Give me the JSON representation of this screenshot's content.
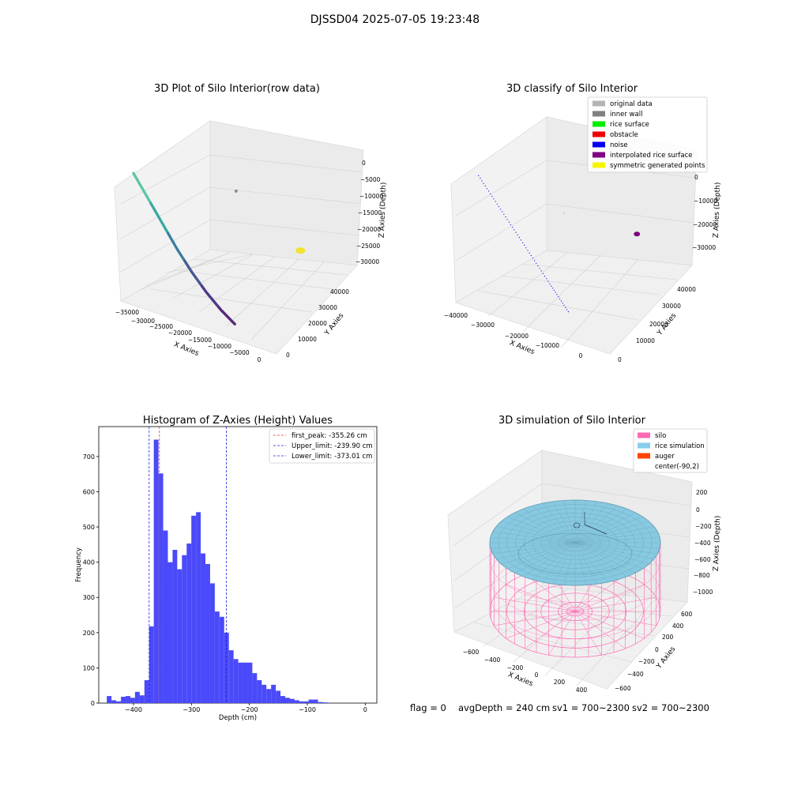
{
  "figure": {
    "suptitle": "DJSSD04 2025-07-05 19:23:48",
    "status": {
      "flag": "flag = 0",
      "avg_depth": "avgDepth = 240 cm",
      "sv1": "sv1 = 700~2300",
      "sv2": "sv2 = 700~2300"
    }
  },
  "chart_data": [
    {
      "type": "scatter",
      "title": "3D Plot of Silo Interior(row data)",
      "xlabel": "X Axies",
      "ylabel": "Y Axies",
      "zlabel": "Z Axies (Depth)",
      "x_ticks": [
        "−35000",
        "−30000",
        "−25000",
        "−20000",
        "−15000",
        "−10000",
        "−5000",
        "0"
      ],
      "y_ticks": [
        "0",
        "10000",
        "20000",
        "30000",
        "40000"
      ],
      "z_ticks": [
        "0",
        "−5000",
        "−10000",
        "−15000",
        "−20000",
        "−25000",
        "−30000"
      ],
      "colormap": [
        "#5ec4a8",
        "#3aa8a0",
        "#3c7fa0",
        "#455a96",
        "#4f3a8a",
        "#5a2a7a"
      ],
      "series": [
        {
          "points": [
            {
              "x": -33000,
              "y": 2000,
              "z": -9000
            },
            {
              "x": -30000,
              "y": 2500,
              "z": -13000
            },
            {
              "x": -27000,
              "y": 3000,
              "z": -17000
            },
            {
              "x": -24000,
              "y": 3500,
              "z": -21000
            },
            {
              "x": -21000,
              "y": 4000,
              "z": -24500
            },
            {
              "x": -18000,
              "y": 4500,
              "z": -27500
            },
            {
              "x": -15000,
              "y": 5000,
              "z": -30000
            },
            {
              "x": -12000,
              "y": 5500,
              "z": -32000
            }
          ]
        },
        {
          "points": [
            {
              "x": -26000,
              "y": 38000,
              "z": -18000
            }
          ],
          "color": "#8c8c8c"
        },
        {
          "points": [
            {
              "x": -10000,
              "y": 35000,
              "z": -24000
            }
          ],
          "color": "#f2e32e"
        }
      ]
    },
    {
      "type": "scatter",
      "title": "3D classify of Silo Interior",
      "xlabel": "X Axies",
      "ylabel": "Y Axies",
      "zlabel": "Z Axies (Depth)",
      "x_ticks": [
        "−40000",
        "−30000",
        "−20000",
        "−10000",
        "0"
      ],
      "y_ticks": [
        "0",
        "10000",
        "20000",
        "30000",
        "40000"
      ],
      "z_ticks": [
        "0",
        "−10000",
        "−20000",
        "−30000"
      ],
      "legend": {
        "position": "upper right",
        "entries": [
          {
            "label": "original data",
            "color": "#b4b4b4"
          },
          {
            "label": "inner wall",
            "color": "#808080"
          },
          {
            "label": "rice surface",
            "color": "#00ee00"
          },
          {
            "label": "obstacle",
            "color": "#ee0000"
          },
          {
            "label": "noise",
            "color": "#0000ee"
          },
          {
            "label": "interpolated rice surface",
            "color": "#800080"
          },
          {
            "label": "symmetric generated points",
            "color": "#f5f500"
          }
        ]
      },
      "series": [
        {
          "label": "noise",
          "points": [
            {
              "x": -36000,
              "y": 2000,
              "z": -9000
            },
            {
              "x": -30000,
              "y": 2500,
              "z": -15000
            },
            {
              "x": -24000,
              "y": 3000,
              "z": -21000
            },
            {
              "x": -18000,
              "y": 3500,
              "z": -27000
            },
            {
              "x": -13000,
              "y": 4000,
              "z": -32000
            }
          ]
        },
        {
          "label": "interpolated rice surface",
          "points": [
            {
              "x": -12000,
              "y": 36000,
              "z": -23000
            }
          ]
        }
      ]
    },
    {
      "type": "bar",
      "title": "Histogram of Z-Axies (Height) Values",
      "xlabel": "Depth (cm)",
      "ylabel": "Frequency",
      "xlim": [
        -460,
        20
      ],
      "ylim": [
        0,
        785
      ],
      "x_ticks": [
        -400,
        -300,
        -200,
        -100,
        0
      ],
      "y_ticks": [
        0,
        100,
        200,
        300,
        400,
        500,
        600,
        700
      ],
      "bar_color": "#4a4afa",
      "bins": [
        {
          "x0": -446.1,
          "x1": -438.0,
          "value": 20
        },
        {
          "x0": -438.0,
          "x1": -429.9,
          "value": 8
        },
        {
          "x0": -429.9,
          "x1": -421.7,
          "value": 5
        },
        {
          "x0": -421.7,
          "x1": -413.6,
          "value": 18
        },
        {
          "x0": -413.6,
          "x1": -405.5,
          "value": 20
        },
        {
          "x0": -405.5,
          "x1": -397.4,
          "value": 15
        },
        {
          "x0": -397.4,
          "x1": -389.3,
          "value": 32
        },
        {
          "x0": -389.3,
          "x1": -381.2,
          "value": 22
        },
        {
          "x0": -381.2,
          "x1": -373.1,
          "value": 65
        },
        {
          "x0": -373.1,
          "x1": -365.0,
          "value": 218
        },
        {
          "x0": -365.0,
          "x1": -356.9,
          "value": 748
        },
        {
          "x0": -356.9,
          "x1": -348.8,
          "value": 652
        },
        {
          "x0": -348.8,
          "x1": -340.7,
          "value": 490
        },
        {
          "x0": -340.7,
          "x1": -332.6,
          "value": 400
        },
        {
          "x0": -332.6,
          "x1": -324.5,
          "value": 435
        },
        {
          "x0": -324.5,
          "x1": -316.4,
          "value": 380
        },
        {
          "x0": -316.4,
          "x1": -308.3,
          "value": 420
        },
        {
          "x0": -308.3,
          "x1": -300.2,
          "value": 453
        },
        {
          "x0": -300.2,
          "x1": -292.1,
          "value": 532
        },
        {
          "x0": -292.1,
          "x1": -284.0,
          "value": 542
        },
        {
          "x0": -284.0,
          "x1": -275.9,
          "value": 425
        },
        {
          "x0": -275.9,
          "x1": -267.8,
          "value": 395
        },
        {
          "x0": -267.8,
          "x1": -259.7,
          "value": 340
        },
        {
          "x0": -259.7,
          "x1": -251.6,
          "value": 260
        },
        {
          "x0": -251.6,
          "x1": -243.5,
          "value": 245
        },
        {
          "x0": -243.5,
          "x1": -235.4,
          "value": 200
        },
        {
          "x0": -235.4,
          "x1": -227.3,
          "value": 150
        },
        {
          "x0": -227.3,
          "x1": -219.2,
          "value": 125
        },
        {
          "x0": -219.2,
          "x1": -211.1,
          "value": 115
        },
        {
          "x0": -211.1,
          "x1": -203.0,
          "value": 115
        },
        {
          "x0": -203.0,
          "x1": -194.9,
          "value": 115
        },
        {
          "x0": -194.9,
          "x1": -186.8,
          "value": 85
        },
        {
          "x0": -186.8,
          "x1": -178.7,
          "value": 65
        },
        {
          "x0": -178.7,
          "x1": -170.6,
          "value": 52
        },
        {
          "x0": -170.6,
          "x1": -162.5,
          "value": 40
        },
        {
          "x0": -162.5,
          "x1": -154.4,
          "value": 52
        },
        {
          "x0": -154.4,
          "x1": -146.3,
          "value": 35
        },
        {
          "x0": -146.3,
          "x1": -138.2,
          "value": 20
        },
        {
          "x0": -138.2,
          "x1": -130.1,
          "value": 15
        },
        {
          "x0": -130.1,
          "x1": -122.0,
          "value": 12
        },
        {
          "x0": -122.0,
          "x1": -113.9,
          "value": 8
        },
        {
          "x0": -113.9,
          "x1": -105.8,
          "value": 5
        },
        {
          "x0": -105.8,
          "x1": -97.7,
          "value": 5
        },
        {
          "x0": -97.7,
          "x1": -89.6,
          "value": 10
        },
        {
          "x0": -89.6,
          "x1": -81.5,
          "value": 10
        },
        {
          "x0": -81.5,
          "x1": -73.4,
          "value": 3
        },
        {
          "x0": -73.4,
          "x1": -65.3,
          "value": 2
        }
      ],
      "vlines": [
        {
          "label": "first_peak: -355.26 cm",
          "x": -355.26,
          "color": "#ee3333"
        },
        {
          "label": "Upper_limit: -239.90 cm",
          "x": -239.9,
          "color": "#2222dd"
        },
        {
          "label": "Lower_limit: -373.01 cm",
          "x": -373.01,
          "color": "#2222dd"
        }
      ],
      "legend": {
        "position": "upper right"
      }
    },
    {
      "type": "surface",
      "title": "3D simulation of Silo Interior",
      "xlabel": "X Axies",
      "ylabel": "Y Axies",
      "zlabel": "Z Axies (Depth)",
      "x_ticks": [
        "−600",
        "−400",
        "−200",
        "0",
        "200",
        "400"
      ],
      "y_ticks": [
        "−600",
        "−400",
        "−200",
        "0",
        "200",
        "400",
        "600"
      ],
      "z_ticks": [
        "200",
        "0",
        "−200",
        "−400",
        "−600",
        "−800",
        "−1000"
      ],
      "silo_radius": 600,
      "silo_top": 0,
      "silo_bottom": -1100,
      "rice_surface_depth": -240,
      "center": [
        -90,
        2
      ],
      "legend": {
        "position": "upper right",
        "entries": [
          {
            "label": "silo",
            "color": "#ff69b4"
          },
          {
            "label": "rice simulation",
            "color": "#87ceeb"
          },
          {
            "label": "auger",
            "color": "#ff4500"
          },
          {
            "label": "center(-90,2)",
            "color": "#ffffff"
          }
        ]
      }
    }
  ]
}
